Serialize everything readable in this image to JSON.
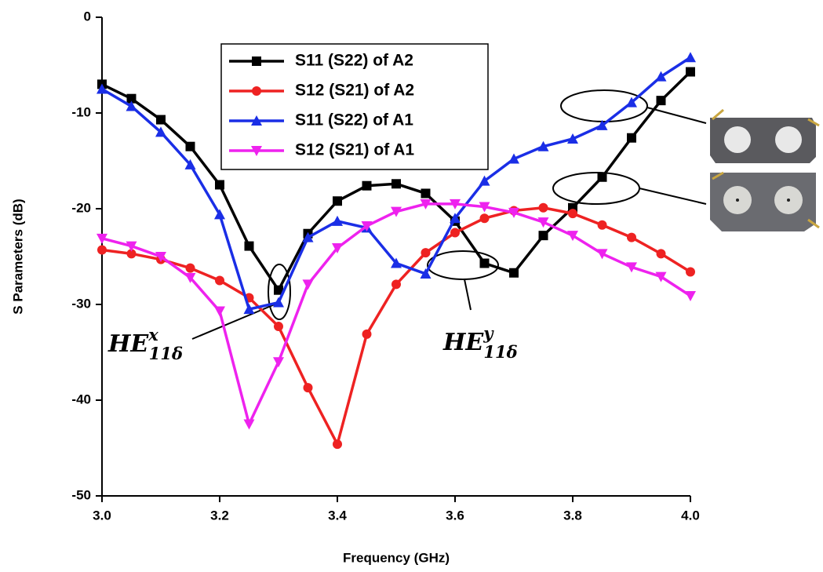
{
  "chart_data": {
    "type": "line",
    "xlabel": "Frequency (GHz)",
    "ylabel": "S Parameters (dB)",
    "x": [
      3.0,
      3.05,
      3.1,
      3.15,
      3.2,
      3.25,
      3.3,
      3.35,
      3.4,
      3.45,
      3.5,
      3.55,
      3.6,
      3.65,
      3.7,
      3.75,
      3.8,
      3.85,
      3.9,
      3.95,
      4.0
    ],
    "xlim": [
      3.0,
      4.0
    ],
    "xticks": [
      {
        "value": 3.0,
        "label": "3.0"
      },
      {
        "value": 3.2,
        "label": "3.2"
      },
      {
        "value": 3.4,
        "label": "3.4"
      },
      {
        "value": 3.6,
        "label": "3.6"
      },
      {
        "value": 3.8,
        "label": "3.8"
      },
      {
        "value": 4.0,
        "label": "4.0"
      }
    ],
    "ylim": [
      -50,
      0
    ],
    "yticks": [
      -50,
      -40,
      -30,
      -20,
      -10,
      0
    ],
    "legend": "upper-center",
    "series": [
      {
        "name": "S11 (S22) of A2",
        "color": "#000000",
        "marker": "square",
        "values": [
          -7.0,
          -8.5,
          -10.7,
          -13.5,
          -17.5,
          -23.9,
          -28.5,
          -22.6,
          -19.2,
          -17.6,
          -17.4,
          -18.4,
          -21.3,
          -25.7,
          -26.7,
          -22.8,
          -19.9,
          -16.7,
          -12.6,
          -8.7,
          -5.7
        ]
      },
      {
        "name": "S12 (S21) of A2",
        "color": "#ee2222",
        "marker": "circle",
        "values": [
          -24.3,
          -24.7,
          -25.3,
          -26.2,
          -27.5,
          -29.3,
          -32.3,
          -38.7,
          -44.6,
          -33.1,
          -27.9,
          -24.6,
          -22.5,
          -21.0,
          -20.2,
          -19.9,
          -20.5,
          -21.7,
          -23.0,
          -24.7,
          -26.6
        ]
      },
      {
        "name": "S11 (S22) of A1",
        "color": "#1a2ee6",
        "marker": "triangle-up",
        "values": [
          -7.5,
          -9.3,
          -12.0,
          -15.4,
          -20.6,
          -30.5,
          -29.8,
          -23.0,
          -21.3,
          -22.0,
          -25.7,
          -26.8,
          -21.0,
          -17.1,
          -14.8,
          -13.5,
          -12.7,
          -11.3,
          -8.9,
          -6.2,
          -4.2
        ]
      },
      {
        "name": "S12 (S21) of A1",
        "color": "#ee22ee",
        "marker": "triangle-down",
        "values": [
          -23.1,
          -23.9,
          -25.0,
          -27.2,
          -30.7,
          -42.5,
          -36.0,
          -27.9,
          -24.1,
          -21.8,
          -20.3,
          -19.5,
          -19.5,
          -19.8,
          -20.4,
          -21.4,
          -22.8,
          -24.7,
          -26.1,
          -27.1,
          -29.1
        ]
      }
    ],
    "annotations": [
      {
        "text": "HE",
        "sup": "x",
        "sub": "11δ"
      },
      {
        "text": "HE",
        "sup": "y",
        "sub": "11δ"
      }
    ]
  }
}
